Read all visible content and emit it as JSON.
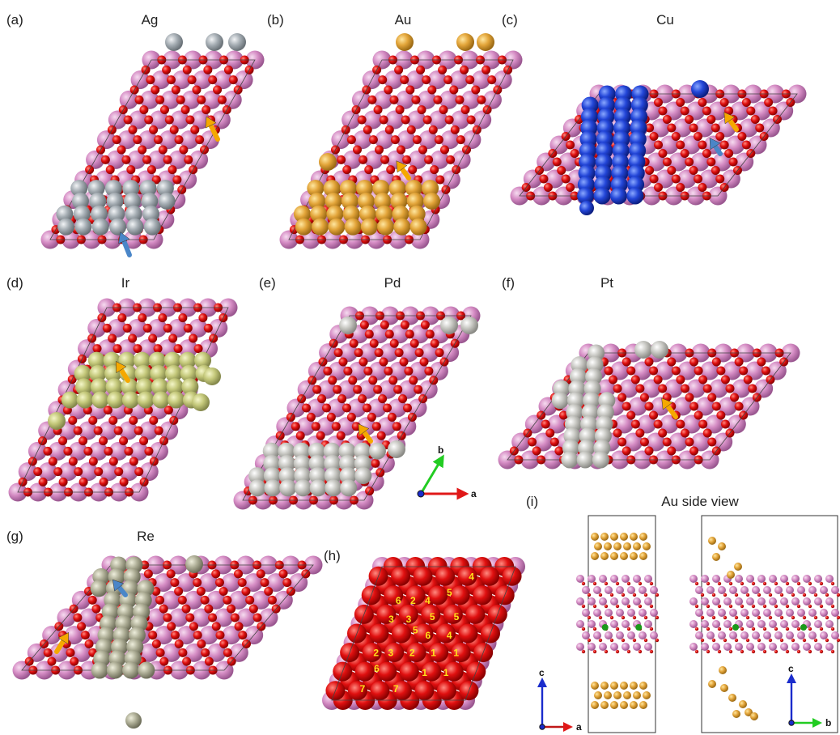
{
  "panels": [
    {
      "label": "(a)",
      "title": "Ag"
    },
    {
      "label": "(b)",
      "title": "Au"
    },
    {
      "label": "(c)",
      "title": "Cu"
    },
    {
      "label": "(d)",
      "title": "Ir"
    },
    {
      "label": "(e)",
      "title": "Pd"
    },
    {
      "label": "(f)",
      "title": "Pt"
    },
    {
      "label": "(g)",
      "title": "Re"
    },
    {
      "label": "(h)",
      "title": ""
    },
    {
      "label": "(i)",
      "title": "Au side view"
    }
  ],
  "axes": {
    "main": [
      "b",
      "a"
    ],
    "side_left": [
      "c",
      "a"
    ],
    "side_right": [
      "c",
      "b"
    ]
  },
  "site_numbers": [
    "4",
    "5",
    "6",
    "2",
    "4",
    "5",
    "5",
    "3",
    "3",
    "5",
    "6",
    "4",
    "2",
    "3",
    "2",
    "1",
    "6",
    "1",
    "1",
    "7",
    "7",
    "1"
  ]
}
